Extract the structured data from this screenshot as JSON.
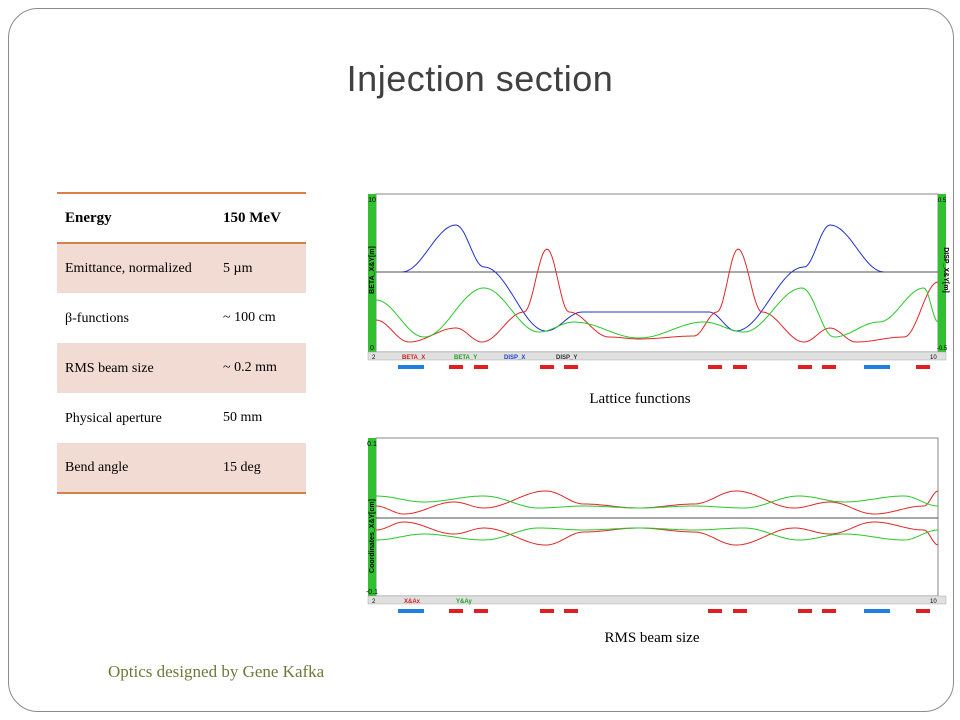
{
  "slide": {
    "title": "Injection section",
    "credit": "Optics designed by Gene Kafka"
  },
  "params_table": {
    "header": {
      "label": "Energy",
      "value": "150 MeV"
    },
    "rows": [
      {
        "label": "Emittance, normalized",
        "value": "5 µm"
      },
      {
        "label": "β-functions",
        "value": "~ 100 cm"
      },
      {
        "label": "RMS beam size",
        "value": "~ 0.2 mm"
      },
      {
        "label": "Physical aperture",
        "value": "50 mm"
      },
      {
        "label": "Bend angle",
        "value": "15 deg"
      }
    ]
  },
  "lattice_plot": {
    "caption": "Lattice functions",
    "left_axis_label": "BETA_X&Y[m]",
    "right_axis_label": "DISP_X&Y[m]",
    "left_ticks": [
      "10",
      "0"
    ],
    "right_ticks": [
      "0.5",
      "-0.5"
    ],
    "x_ticks": [
      "2",
      "10"
    ],
    "legend": [
      "BETA_X",
      "BETA_Y",
      "DISP_X",
      "DISP_Y"
    ],
    "colors": {
      "beta_x": "#2030d0",
      "beta_y": "#e02828",
      "disp_x": "#28c828",
      "disp_y": "#505050"
    }
  },
  "beam_plot": {
    "caption": "RMS beam size",
    "left_axis_label": "Coordinates_X&Y[cm]",
    "left_ticks": [
      "0.1",
      "-0.1"
    ],
    "x_ticks": [
      "2",
      "10"
    ],
    "legend": [
      "X&Ax",
      "Y&Ay"
    ],
    "colors": {
      "x": "#e02828",
      "y": "#28c828"
    }
  },
  "element_bar": {
    "colors": {
      "quad": "#e02020",
      "bend": "#2080e0"
    }
  }
}
